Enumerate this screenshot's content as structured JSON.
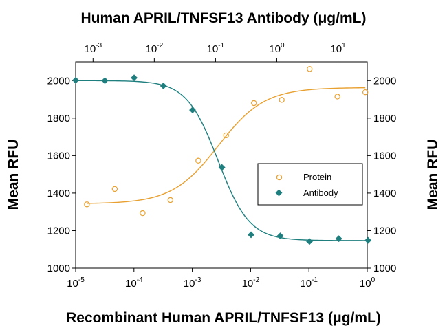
{
  "chart_data": {
    "type": "scatter",
    "title": "Human APRIL/TNFSF13 Antibody (μg/mL)",
    "xlabel": "Recombinant Human APRIL/TNFSF13 (μg/mL)",
    "ylabel_left": "Mean RFU",
    "ylabel_right": "Mean RFU",
    "x_scale": "log",
    "xlim": [
      1e-05,
      1
    ],
    "ylim": [
      1000,
      2100
    ],
    "y_ticks": [
      "1000",
      "1200",
      "1400",
      "1600",
      "1800",
      "2000"
    ],
    "y_tick_values": [
      1000,
      1200,
      1400,
      1600,
      1800,
      2000
    ],
    "x_ticks": [
      {
        "base": "10",
        "exp": "-5",
        "value": 1e-05
      },
      {
        "base": "10",
        "exp": "-4",
        "value": 0.0001
      },
      {
        "base": "10",
        "exp": "-3",
        "value": 0.001
      },
      {
        "base": "10",
        "exp": "-2",
        "value": 0.01
      },
      {
        "base": "10",
        "exp": "-1",
        "value": 0.1
      },
      {
        "base": "10",
        "exp": "0",
        "value": 1
      }
    ],
    "top_axis": {
      "scale": "log",
      "xlim": [
        0.00052,
        30
      ],
      "ticks": [
        {
          "base": "10",
          "exp": "-3",
          "value": 0.001
        },
        {
          "base": "10",
          "exp": "-2",
          "value": 0.01
        },
        {
          "base": "10",
          "exp": "-1",
          "value": 0.1
        },
        {
          "base": "10",
          "exp": "0",
          "value": 1
        },
        {
          "base": "10",
          "exp": "1",
          "value": 10
        }
      ]
    },
    "grid": false,
    "legend": "center-right",
    "series": [
      {
        "name": "Protein",
        "marker": "open-circle",
        "color": "#E8A030",
        "axis": "bottom",
        "x": [
          1.56e-05,
          4.69e-05,
          0.000141,
          0.000422,
          0.00127,
          0.0038,
          0.0114,
          0.0342,
          0.103,
          0.308,
          0.926
        ],
        "y": [
          1340,
          1422,
          1293,
          1363,
          1573,
          1708,
          1880,
          1897,
          2062,
          1915,
          1938
        ],
        "fit": {
          "bottom": 1343,
          "top": 1963,
          "ec50": 0.0028,
          "hill": 1.1
        }
      },
      {
        "name": "Antibody",
        "marker": "filled-diamond",
        "color": "#1F7F7F",
        "axis": "top",
        "x": [
          0.00052,
          0.00156,
          0.00469,
          0.0141,
          0.0422,
          0.127,
          0.38,
          1.14,
          3.42,
          10.3,
          30.9
        ],
        "y": [
          2002,
          2000,
          2015,
          1972,
          1843,
          1537,
          1178,
          1172,
          1142,
          1157,
          1148
        ],
        "fit": {
          "bottom": 1147,
          "top": 2000,
          "ec50": 0.11,
          "hill": 1.7
        }
      }
    ]
  }
}
